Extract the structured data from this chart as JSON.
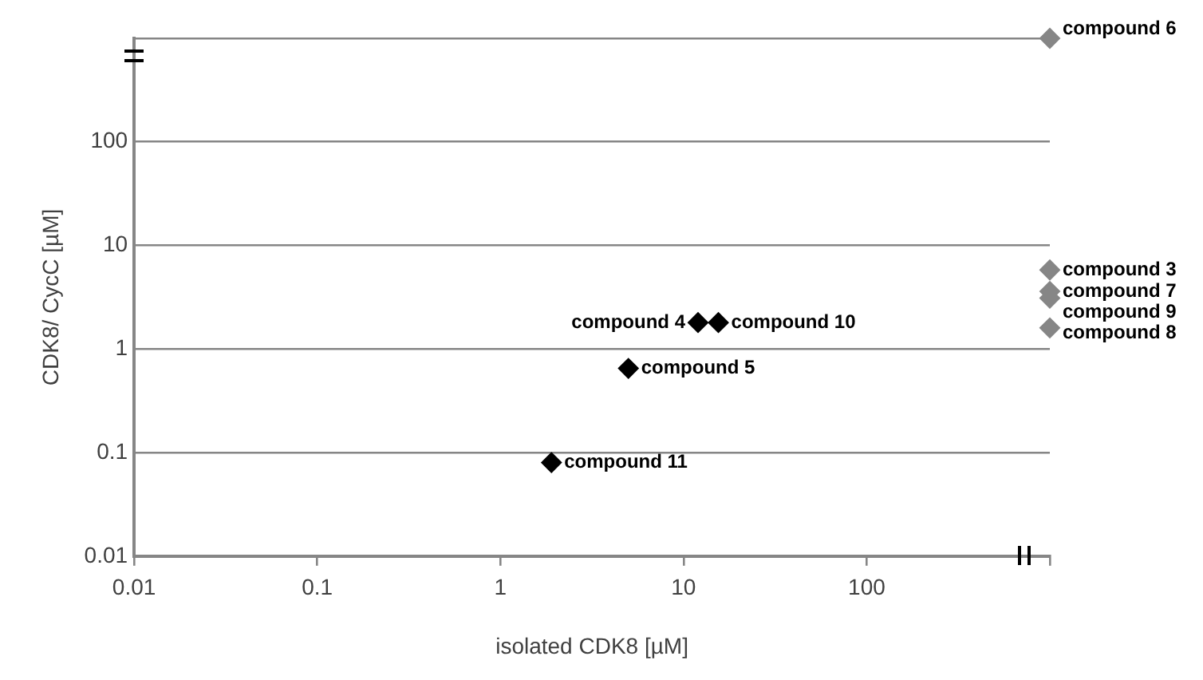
{
  "chart_data": {
    "type": "scatter",
    "xlabel": "isolated CDK8 [µM]",
    "ylabel": "CDK8/ CycC [µM]",
    "log": "xy",
    "xlim": [
      0.01,
      1000
    ],
    "ylim": [
      0.01,
      1000
    ],
    "xticks": [
      0.01,
      0.1,
      1,
      10,
      100,
      {
        "value": 1000,
        "label": null
      }
    ],
    "yticks": [
      0.01,
      0.1,
      1,
      10,
      100,
      {
        "value": 1000,
        "label": null
      }
    ],
    "grid": "y",
    "legend": false,
    "marker": "diamond",
    "series": [
      {
        "color": "#000000",
        "x": [
          12,
          15.5,
          5,
          1.9
        ],
        "values": [
          1.8,
          1.8,
          0.65,
          0.08
        ]
      },
      {
        "color": "#868686",
        "x": [
          1000,
          1000,
          1000,
          1000,
          1000
        ],
        "values": [
          1000,
          5.8,
          3.6,
          3.1,
          1.6
        ]
      }
    ],
    "annotations": [
      {
        "text": "compound 4",
        "x": 12,
        "y": 1.8
      },
      {
        "text": "compound 10",
        "x": 15.5,
        "y": 1.8
      },
      {
        "text": "compound 5",
        "x": 5,
        "y": 0.65
      },
      {
        "text": "compound 11",
        "x": 1.9,
        "y": 0.08
      },
      {
        "text": "compound 6",
        "x": 1000,
        "y": 1000
      },
      {
        "text": "compound 3",
        "x": 1000,
        "y": 5.8
      },
      {
        "text": "compound 7",
        "x": 1000,
        "y": 3.6
      },
      {
        "text": "compound 9",
        "x": 1000,
        "y": 3.1
      },
      {
        "text": "compound 8",
        "x": 1000,
        "y": 1.6
      }
    ]
  }
}
